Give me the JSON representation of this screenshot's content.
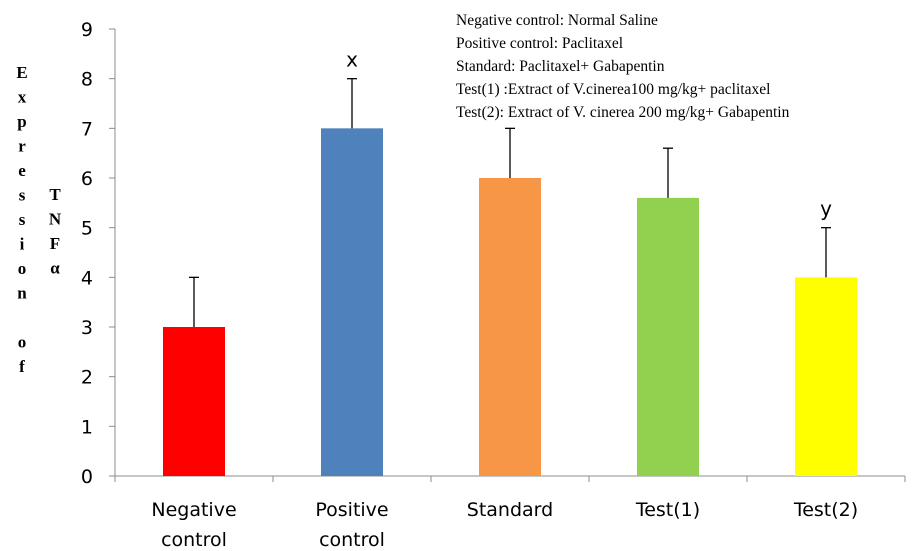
{
  "chart_data": {
    "type": "bar",
    "title": "",
    "categories": [
      [
        "Negative",
        "control"
      ],
      [
        "Positive",
        "control"
      ],
      [
        "Standard"
      ],
      [
        "Test(1)"
      ],
      [
        "Test(2)"
      ]
    ],
    "values": [
      3,
      7,
      6,
      5.6,
      4
    ],
    "errors": [
      1,
      1,
      1,
      1,
      1
    ],
    "colors": [
      "#ff0000",
      "#4f81bd",
      "#f79646",
      "#92d050",
      "#ffff00"
    ],
    "annotations": [
      "",
      "x",
      "",
      "",
      "y"
    ],
    "ylim": [
      0,
      9
    ],
    "yticks": [
      0,
      1,
      2,
      3,
      4,
      5,
      6,
      7,
      8,
      9
    ],
    "ylabel_outer": [
      "E",
      "x",
      "p",
      "r",
      "e",
      "s",
      "s",
      "i",
      "o",
      "n",
      "",
      "o",
      "f"
    ],
    "ylabel_inner": [
      "T",
      "N",
      "F",
      "α"
    ],
    "legend_text": [
      "Negative control: Normal Saline",
      "Positive control: Paclitaxel",
      "Standard: Paclitaxel+ Gabapentin",
      "Test(1) :Extract of V.cinerea100  mg/kg+ paclitaxel",
      "Test(2): Extract of V. cinerea 200 mg/kg+ Gabapentin"
    ],
    "grid": false
  }
}
